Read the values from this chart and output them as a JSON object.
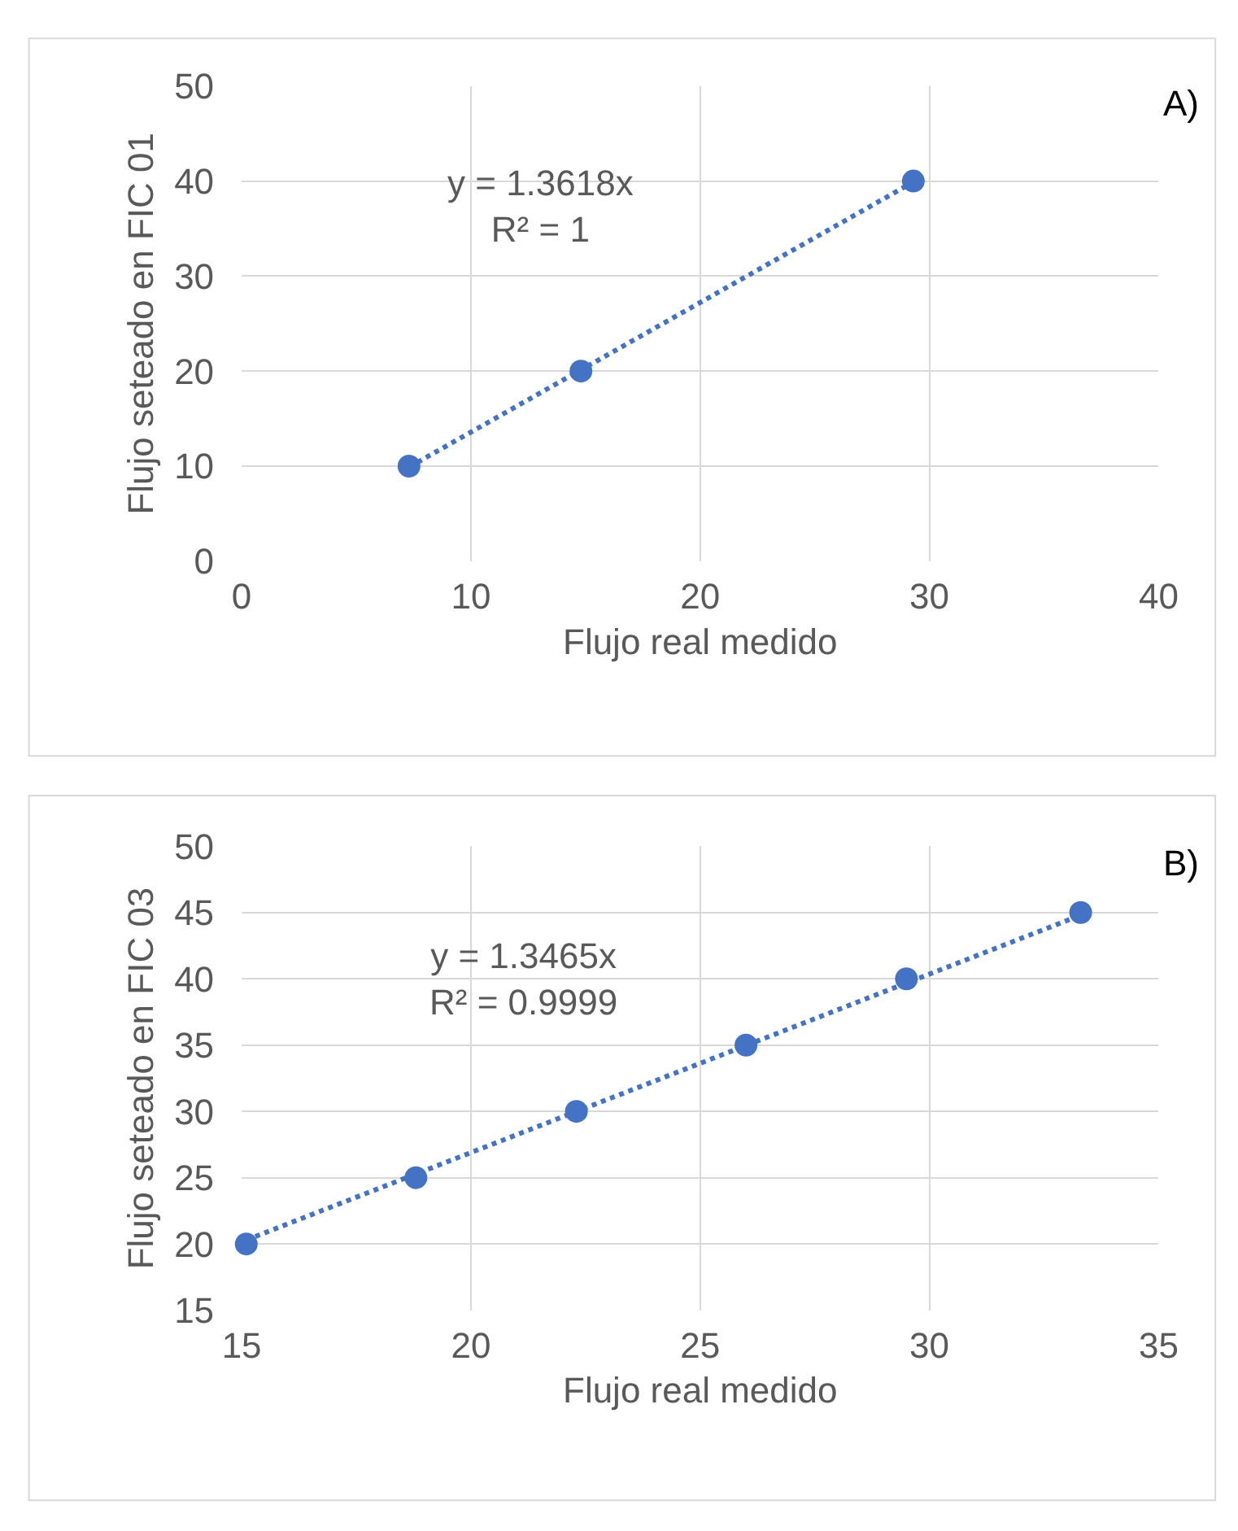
{
  "chart_data": [
    {
      "type": "scatter",
      "xlabel": "Flujo real medido",
      "ylabel": "Flujo seteado en FIC 01",
      "xlim": [
        0,
        40
      ],
      "xticks": [
        0,
        10,
        20,
        30,
        40
      ],
      "ylim": [
        0,
        50
      ],
      "yticks": [
        0,
        10,
        20,
        30,
        40,
        50
      ],
      "grid": true,
      "marker": "circle",
      "annotations": [
        "A)",
        "y = 1.3618x\nR² = 1"
      ],
      "series": [
        {
          "color": "#4472c4",
          "x": [
            7.3,
            14.8,
            29.3
          ],
          "values": [
            10,
            20,
            40
          ]
        },
        {
          "type": "line",
          "line_style": "dotted",
          "marker": "none",
          "color": "#4472c4",
          "x": [
            7.3,
            29.3
          ],
          "values": [
            9.9,
            39.9
          ]
        }
      ]
    },
    {
      "type": "scatter",
      "xlabel": "Flujo real medido",
      "ylabel": "Flujo seteado en FIC 03",
      "xlim": [
        15,
        35
      ],
      "xticks": [
        15,
        20,
        25,
        30,
        35
      ],
      "ylim": [
        15,
        50
      ],
      "yticks": [
        15,
        20,
        25,
        30,
        35,
        40,
        45,
        50
      ],
      "grid": true,
      "marker": "circle",
      "annotations": [
        "B)",
        "y = 1.3465x\nR² = 0.9999"
      ],
      "series": [
        {
          "color": "#4472c4",
          "x": [
            15.1,
            18.8,
            22.3,
            26.0,
            29.5,
            33.3
          ],
          "values": [
            20,
            25,
            30,
            35,
            40,
            45
          ]
        },
        {
          "type": "line",
          "line_style": "dotted",
          "marker": "none",
          "color": "#4472c4",
          "x": [
            15.1,
            33.3
          ],
          "values": [
            20.3,
            44.8
          ]
        }
      ]
    }
  ]
}
